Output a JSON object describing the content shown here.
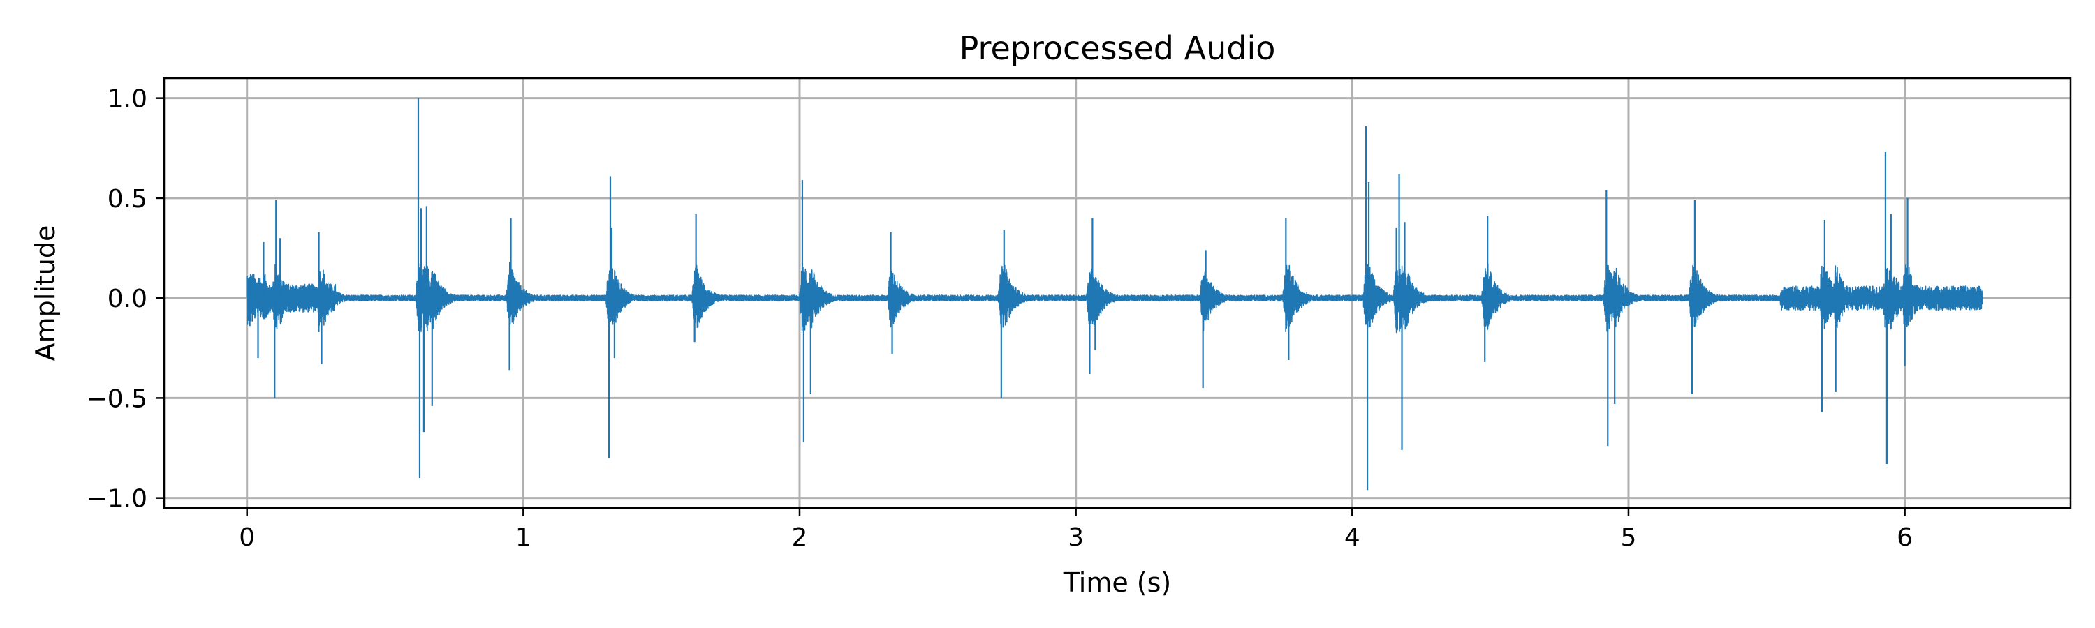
{
  "chart_data": {
    "type": "line",
    "title": "Preprocessed Audio",
    "xlabel": "Time (s)",
    "ylabel": "Amplitude",
    "xlim": [
      -0.3,
      6.6
    ],
    "ylim": [
      -1.05,
      1.1
    ],
    "xticks": [
      0,
      1,
      2,
      3,
      4,
      5,
      6
    ],
    "xtick_labels": [
      "0",
      "1",
      "2",
      "3",
      "4",
      "5",
      "6"
    ],
    "yticks": [
      1.0,
      0.5,
      0.0,
      -0.5,
      -1.0
    ],
    "ytick_labels": [
      "1.0",
      "0.5",
      "0.0",
      "−0.5",
      "−1.0"
    ],
    "grid": true,
    "line_color": "#1f77b4",
    "duration_s": 6.28,
    "series": [
      {
        "x": [
          0.0,
          0.01,
          0.02,
          0.04,
          0.06,
          0.1,
          0.105,
          0.12,
          0.26,
          0.27,
          0.62,
          0.625,
          0.63,
          0.64,
          0.65,
          0.67,
          0.95,
          0.955,
          1.31,
          1.315,
          1.32,
          1.33,
          1.62,
          1.625,
          2.01,
          2.015,
          2.04,
          2.33,
          2.335,
          2.73,
          2.74,
          3.05,
          3.06,
          3.07,
          3.46,
          3.47,
          3.76,
          3.77,
          4.05,
          4.055,
          4.06,
          4.16,
          4.17,
          4.18,
          4.19,
          4.48,
          4.49,
          4.92,
          4.925,
          4.95,
          5.23,
          5.24,
          5.7,
          5.71,
          5.75,
          5.93,
          5.935,
          5.95,
          6.0,
          6.01
        ],
        "y": [
          0.11,
          -0.14,
          0.09,
          -0.3,
          0.28,
          -0.5,
          0.49,
          0.3,
          0.33,
          -0.33,
          1.0,
          -0.9,
          0.45,
          -0.67,
          0.46,
          -0.54,
          -0.36,
          0.4,
          -0.8,
          0.61,
          0.35,
          -0.3,
          -0.22,
          0.42,
          0.59,
          -0.72,
          -0.48,
          0.33,
          -0.28,
          -0.5,
          0.34,
          -0.38,
          0.4,
          -0.26,
          -0.45,
          0.24,
          0.4,
          -0.31,
          0.86,
          -0.96,
          0.58,
          0.35,
          0.62,
          -0.76,
          0.38,
          -0.32,
          0.41,
          0.54,
          -0.74,
          -0.53,
          -0.48,
          0.49,
          -0.57,
          0.39,
          -0.47,
          0.73,
          -0.83,
          0.42,
          -0.34,
          0.5
        ]
      }
    ]
  }
}
